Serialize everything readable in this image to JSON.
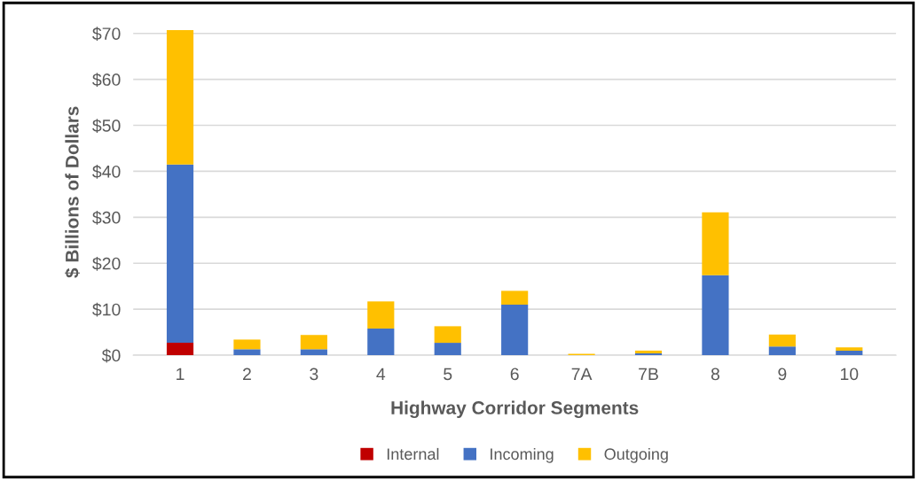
{
  "chart_data": {
    "type": "bar",
    "stacked": true,
    "xlabel": "Highway Corridor Segments",
    "ylabel": "$ Billions of Dollars",
    "categories": [
      "1",
      "2",
      "3",
      "4",
      "5",
      "6",
      "7A",
      "7B",
      "8",
      "9",
      "10"
    ],
    "series": [
      {
        "name": "Internal",
        "color": "#c00000",
        "values": [
          2.7,
          0,
          0,
          0,
          0,
          0,
          0,
          0,
          0,
          0,
          0
        ]
      },
      {
        "name": "Incoming",
        "color": "#4472c4",
        "values": [
          38.8,
          1.3,
          1.3,
          5.8,
          2.7,
          11.0,
          null,
          0.4,
          17.4,
          1.9,
          1.0
        ]
      },
      {
        "name": "Outgoing",
        "color": "#ffc000",
        "values": [
          29.2,
          2.1,
          3.1,
          5.9,
          3.6,
          3.0,
          0.3,
          0.6,
          13.7,
          2.6,
          0.7
        ]
      }
    ],
    "ylim": [
      0,
      71
    ],
    "yticks": [
      {
        "value": 0,
        "label": "$0"
      },
      {
        "value": 10,
        "label": "$10"
      },
      {
        "value": 20,
        "label": "$20"
      },
      {
        "value": 30,
        "label": "$30"
      },
      {
        "value": 40,
        "label": "$40"
      },
      {
        "value": 50,
        "label": "$50"
      },
      {
        "value": 60,
        "label": "$60"
      },
      {
        "value": 70,
        "label": "$70"
      }
    ],
    "grid": "y",
    "legend": "bottom"
  }
}
